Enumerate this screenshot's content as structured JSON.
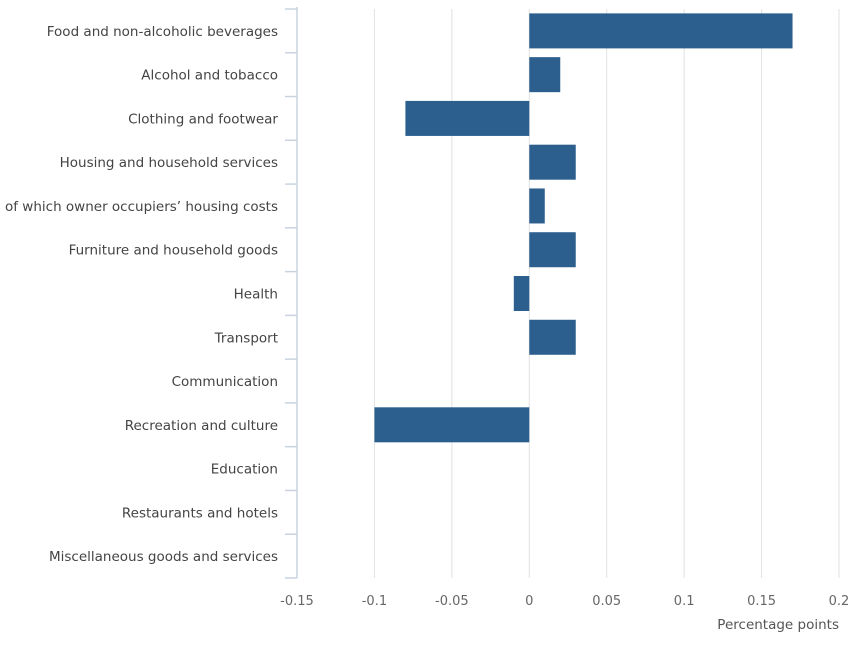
{
  "chart_data": {
    "type": "bar",
    "orientation": "horizontal",
    "title": "",
    "xlabel": "Percentage points",
    "ylabel": "",
    "xlim": [
      -0.15,
      0.2
    ],
    "x_ticks": [
      -0.15,
      -0.1,
      -0.05,
      0,
      0.05,
      0.1,
      0.15,
      0.2
    ],
    "x_tick_labels": [
      "-0.15",
      "-0.1",
      "-0.05",
      "0",
      "0.05",
      "0.1",
      "0.15",
      "0.2"
    ],
    "grid": "vertical",
    "bar_color": "#2c5f8e",
    "categories": [
      "Food and non-alcoholic beverages",
      "Alcohol and tobacco",
      "Clothing and footwear",
      "Housing and household services",
      "of which owner occupiers’ housing costs",
      "Furniture and household goods",
      "Health",
      "Transport",
      "Communication",
      "Recreation and culture",
      "Education",
      "Restaurants and hotels",
      "Miscellaneous goods and services"
    ],
    "values": [
      0.17,
      0.02,
      -0.08,
      0.03,
      0.01,
      0.03,
      -0.01,
      0.03,
      0,
      -0.1,
      0,
      0,
      0
    ]
  }
}
